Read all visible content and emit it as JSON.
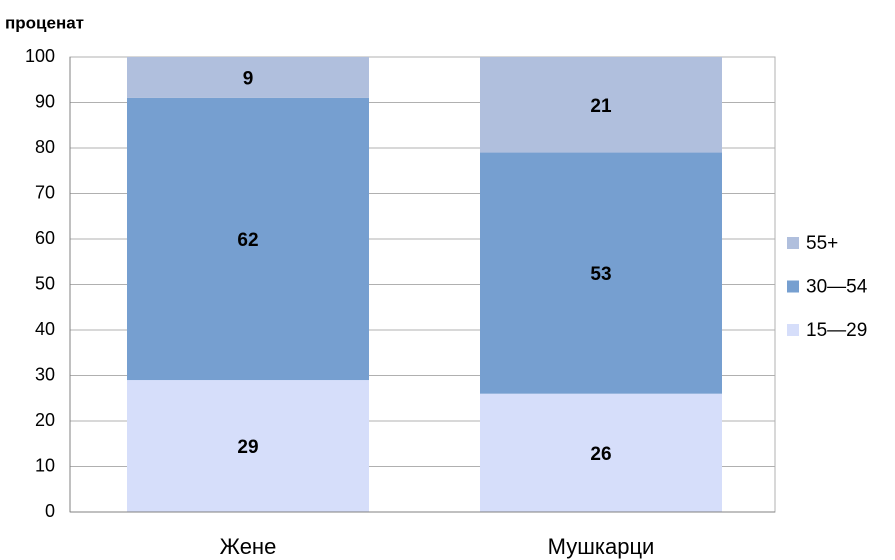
{
  "chart_data": {
    "type": "stacked_bar",
    "y_axis_label": "проценат",
    "categories": [
      "Жене",
      "Мушкарци"
    ],
    "series": [
      {
        "name": "15—29",
        "color": "#d6defa",
        "values": [
          29,
          26
        ]
      },
      {
        "name": "30—54",
        "color": "#769fd0",
        "values": [
          62,
          53
        ]
      },
      {
        "name": "55+",
        "color": "#b0bfdd",
        "values": [
          9,
          21
        ]
      }
    ],
    "ylim": [
      0,
      100
    ],
    "yticks": [
      0,
      10,
      20,
      30,
      40,
      50,
      60,
      70,
      80,
      90,
      100
    ],
    "grid": true,
    "legend": "right"
  }
}
